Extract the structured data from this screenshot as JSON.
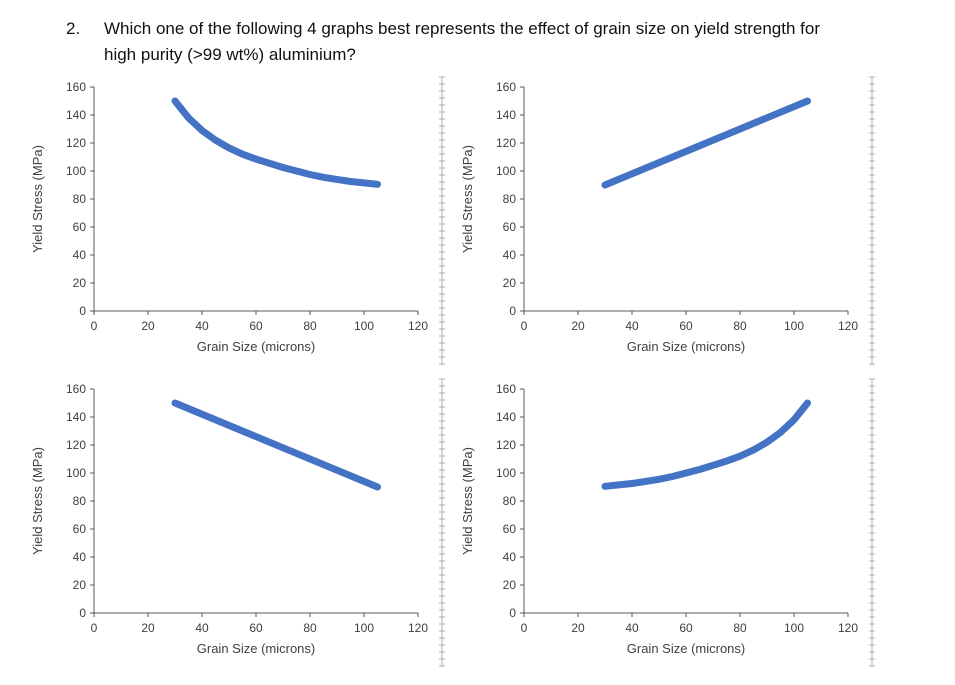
{
  "page": {
    "background": "#ffffff"
  },
  "question": {
    "number": "2.",
    "text": "Which one of the following 4 graphs best represents the effect of grain size on yield strength for high purity (>99 wt%) aluminium?"
  },
  "chart_data": [
    {
      "id": "graph-top-left",
      "type": "line",
      "xlabel": "Grain Size (microns)",
      "ylabel": "Yield Stress (MPa)",
      "xlim": [
        0,
        120
      ],
      "ylim": [
        0,
        160
      ],
      "xticks": [
        0,
        20,
        40,
        60,
        80,
        100,
        120
      ],
      "yticks": [
        0,
        20,
        40,
        60,
        80,
        100,
        120,
        140,
        160
      ],
      "line_color": "#4472C4",
      "points": [
        [
          30,
          150
        ],
        [
          35,
          138
        ],
        [
          40,
          129
        ],
        [
          45,
          122
        ],
        [
          50,
          116.5
        ],
        [
          55,
          112
        ],
        [
          60,
          108.5
        ],
        [
          65,
          105.5
        ],
        [
          70,
          102.5
        ],
        [
          75,
          100
        ],
        [
          80,
          97.5
        ],
        [
          85,
          95.5
        ],
        [
          90,
          94
        ],
        [
          95,
          92.5
        ],
        [
          100,
          91.5
        ],
        [
          105,
          90.5
        ]
      ]
    },
    {
      "id": "graph-top-right",
      "type": "line",
      "xlabel": "Grain Size (microns)",
      "ylabel": "Yield Stress (MPa)",
      "xlim": [
        0,
        120
      ],
      "ylim": [
        0,
        160
      ],
      "xticks": [
        0,
        20,
        40,
        60,
        80,
        100,
        120
      ],
      "yticks": [
        0,
        20,
        40,
        60,
        80,
        100,
        120,
        140,
        160
      ],
      "line_color": "#4472C4",
      "points": [
        [
          30,
          90
        ],
        [
          105,
          150
        ]
      ]
    },
    {
      "id": "graph-bottom-left",
      "type": "line",
      "xlabel": "Grain Size (microns)",
      "ylabel": "Yield Stress (MPa)",
      "xlim": [
        0,
        120
      ],
      "ylim": [
        0,
        160
      ],
      "xticks": [
        0,
        20,
        40,
        60,
        80,
        100,
        120
      ],
      "yticks": [
        0,
        20,
        40,
        60,
        80,
        100,
        120,
        140,
        160
      ],
      "line_color": "#4472C4",
      "points": [
        [
          30,
          150
        ],
        [
          105,
          90
        ]
      ]
    },
    {
      "id": "graph-bottom-right",
      "type": "line",
      "xlabel": "Grain Size (microns)",
      "ylabel": "Yield Stress (MPa)",
      "xlim": [
        0,
        120
      ],
      "ylim": [
        0,
        160
      ],
      "xticks": [
        0,
        20,
        40,
        60,
        80,
        100,
        120
      ],
      "yticks": [
        0,
        20,
        40,
        60,
        80,
        100,
        120,
        140,
        160
      ],
      "line_color": "#4472C4",
      "points": [
        [
          30,
          90.5
        ],
        [
          35,
          91.5
        ],
        [
          40,
          92.5
        ],
        [
          45,
          94
        ],
        [
          50,
          95.5
        ],
        [
          55,
          97.5
        ],
        [
          60,
          100
        ],
        [
          65,
          102.5
        ],
        [
          70,
          105.5
        ],
        [
          75,
          108.5
        ],
        [
          80,
          112
        ],
        [
          85,
          116.5
        ],
        [
          90,
          122
        ],
        [
          95,
          129
        ],
        [
          100,
          138
        ],
        [
          105,
          150
        ]
      ]
    }
  ],
  "style": {
    "axis_color": "#595959",
    "label_color": "#404040",
    "ruler_color": "#a0a0a0"
  }
}
